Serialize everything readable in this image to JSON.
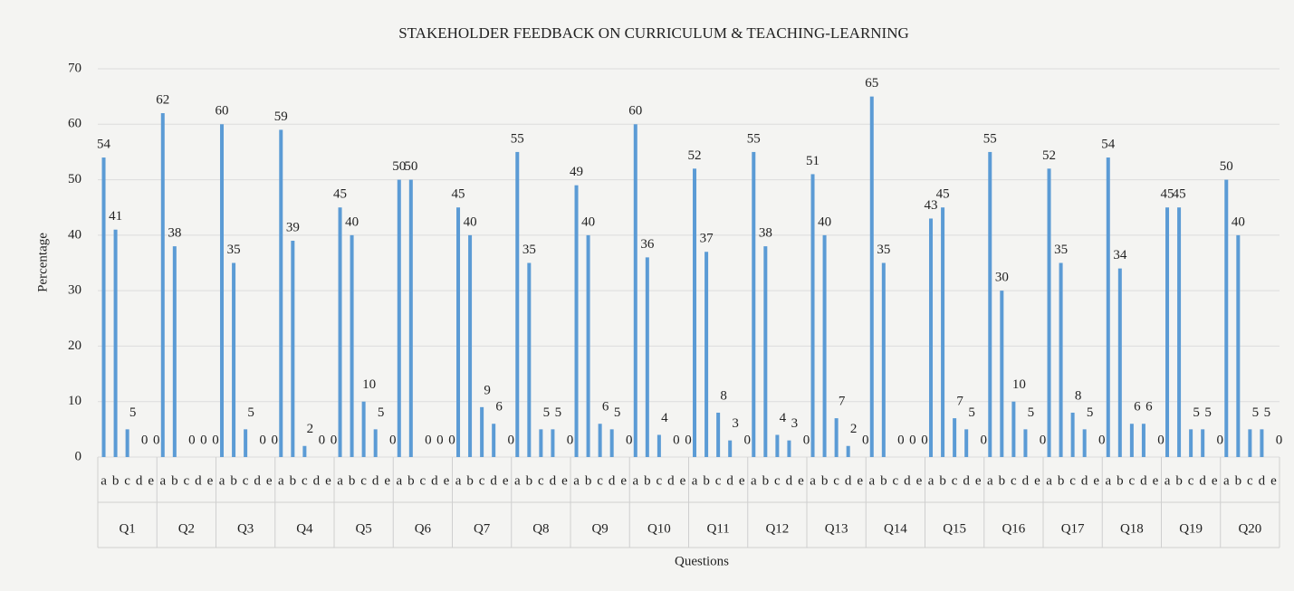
{
  "chart_data": {
    "type": "bar",
    "title": "STAKEHOLDER FEEDBACK ON CURRICULUM & TEACHING-LEARNING",
    "xlabel": "Questions",
    "ylabel": "Percentage",
    "color": "#5b9bd5",
    "ylim": [
      0,
      70
    ],
    "yticks": [
      0,
      10,
      20,
      30,
      40,
      50,
      60,
      70
    ],
    "grid": true,
    "groups": [
      {
        "label": "Q1",
        "categories": [
          "a",
          "b",
          "c",
          "d",
          "e"
        ],
        "values": [
          54,
          41,
          5,
          0,
          0
        ]
      },
      {
        "label": "Q2",
        "categories": [
          "a",
          "b",
          "c",
          "d",
          "e"
        ],
        "values": [
          62,
          38,
          0,
          0,
          0
        ]
      },
      {
        "label": "Q3",
        "categories": [
          "a",
          "b",
          "c",
          "d",
          "e"
        ],
        "values": [
          60,
          35,
          5,
          0,
          0
        ]
      },
      {
        "label": "Q4",
        "categories": [
          "a",
          "b",
          "c",
          "d",
          "e"
        ],
        "values": [
          59,
          39,
          2,
          0,
          0
        ]
      },
      {
        "label": "Q5",
        "categories": [
          "a",
          "b",
          "c",
          "d",
          "e"
        ],
        "values": [
          45,
          40,
          10,
          5,
          0
        ]
      },
      {
        "label": "Q6",
        "categories": [
          "a",
          "b",
          "c",
          "d",
          "e"
        ],
        "values": [
          50,
          50,
          0,
          0,
          0
        ]
      },
      {
        "label": "Q7",
        "categories": [
          "a",
          "b",
          "c",
          "d",
          "e"
        ],
        "values": [
          45,
          40,
          9,
          6,
          0
        ]
      },
      {
        "label": "Q8",
        "categories": [
          "a",
          "b",
          "c",
          "d",
          "e"
        ],
        "values": [
          55,
          35,
          5,
          5,
          0
        ]
      },
      {
        "label": "Q9",
        "categories": [
          "a",
          "b",
          "c",
          "d",
          "e"
        ],
        "values": [
          49,
          40,
          6,
          5,
          0
        ]
      },
      {
        "label": "Q10",
        "categories": [
          "a",
          "b",
          "c",
          "d",
          "e"
        ],
        "values": [
          60,
          36,
          4,
          0,
          0
        ]
      },
      {
        "label": "Q11",
        "categories": [
          "a",
          "b",
          "c",
          "d",
          "e"
        ],
        "values": [
          52,
          37,
          8,
          3,
          0
        ]
      },
      {
        "label": "Q12",
        "categories": [
          "a",
          "b",
          "c",
          "d",
          "e"
        ],
        "values": [
          55,
          38,
          4,
          3,
          0
        ]
      },
      {
        "label": "Q13",
        "categories": [
          "a",
          "b",
          "c",
          "d",
          "e"
        ],
        "values": [
          51,
          40,
          7,
          2,
          0
        ]
      },
      {
        "label": "Q14",
        "categories": [
          "a",
          "b",
          "c",
          "d",
          "e"
        ],
        "values": [
          65,
          35,
          0,
          0,
          0
        ]
      },
      {
        "label": "Q15",
        "categories": [
          "a",
          "b",
          "c",
          "d",
          "e"
        ],
        "values": [
          43,
          45,
          7,
          5,
          0
        ]
      },
      {
        "label": "Q16",
        "categories": [
          "a",
          "b",
          "c",
          "d",
          "e"
        ],
        "values": [
          55,
          30,
          10,
          5,
          0
        ]
      },
      {
        "label": "Q17",
        "categories": [
          "a",
          "b",
          "c",
          "d",
          "e"
        ],
        "values": [
          52,
          35,
          8,
          5,
          0
        ]
      },
      {
        "label": "Q18",
        "categories": [
          "a",
          "b",
          "c",
          "d",
          "e"
        ],
        "values": [
          54,
          34,
          6,
          6,
          0
        ]
      },
      {
        "label": "Q19",
        "categories": [
          "a",
          "b",
          "c",
          "d",
          "e"
        ],
        "values": [
          45,
          45,
          5,
          5,
          0
        ]
      },
      {
        "label": "Q20",
        "categories": [
          "a",
          "b",
          "c",
          "d",
          "e"
        ],
        "values": [
          50,
          40,
          5,
          5,
          0
        ]
      }
    ]
  }
}
